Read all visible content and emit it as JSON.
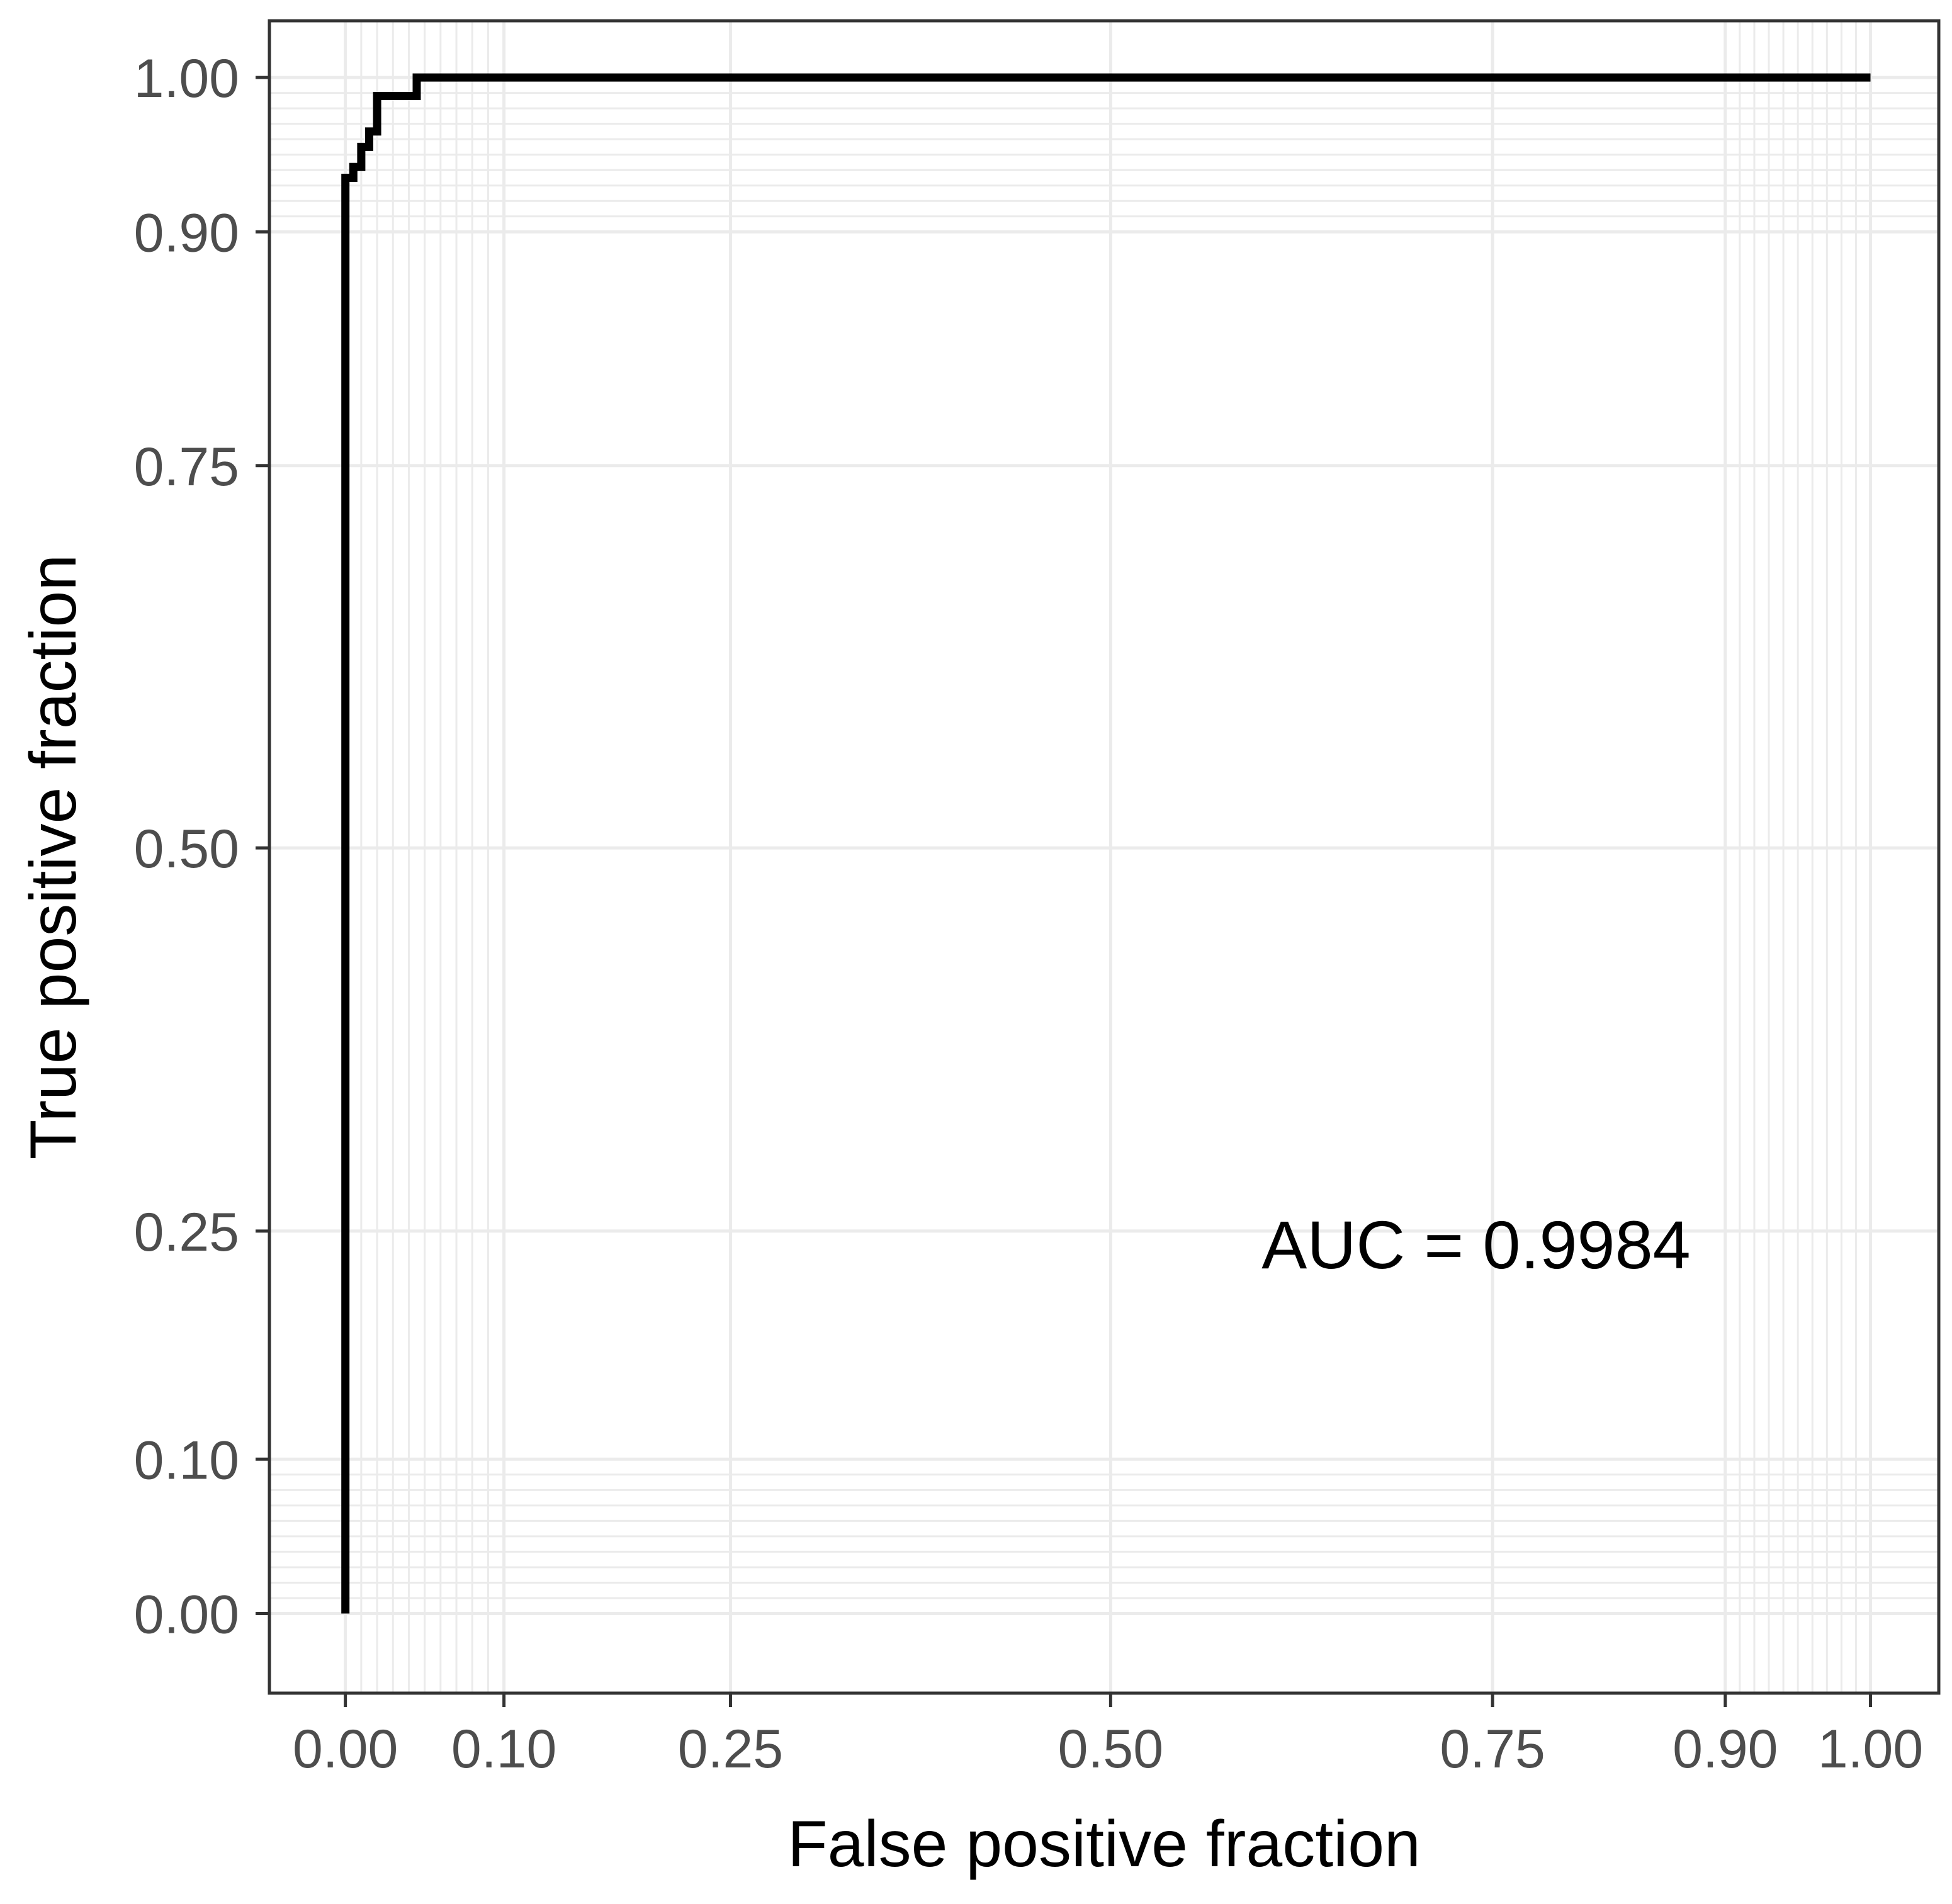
{
  "chart_data": {
    "type": "line",
    "title": "",
    "xlabel": "False positive fraction",
    "ylabel": "True positive fraction",
    "xlim": [
      -0.05,
      1.05
    ],
    "ylim": [
      -0.05,
      1.05
    ],
    "x_ticks": [
      0.0,
      0.1,
      0.25,
      0.5,
      0.75,
      0.9,
      1.0
    ],
    "x_tick_labels": [
      "0.00",
      "0.10",
      "0.25",
      "0.50",
      "0.75",
      "0.90",
      "1.00"
    ],
    "y_ticks": [
      0.0,
      0.1,
      0.25,
      0.5,
      0.75,
      0.9,
      1.0
    ],
    "y_tick_labels": [
      "0.00",
      "0.10",
      "0.25",
      "0.50",
      "0.75",
      "0.90",
      "1.00"
    ],
    "minor_grid": [
      0.01,
      0.02,
      0.03,
      0.04,
      0.05,
      0.06,
      0.07,
      0.08,
      0.09,
      0.91,
      0.92,
      0.93,
      0.94,
      0.95,
      0.96,
      0.97,
      0.98,
      0.99
    ],
    "grid": true,
    "series": [
      {
        "x": [
          0.0,
          0.0,
          0.005,
          0.005,
          0.01,
          0.01,
          0.015,
          0.015,
          0.02,
          0.02,
          0.025,
          0.025,
          0.045,
          0.045,
          1.0
        ],
        "y": [
          0.0,
          0.935,
          0.935,
          0.942,
          0.942,
          0.955,
          0.955,
          0.965,
          0.965,
          0.988,
          0.988,
          0.988,
          0.988,
          1.0,
          1.0
        ]
      }
    ],
    "annotation": "AUC = 0.9984",
    "colors": {
      "line": "#000000",
      "grid": "#ebebeb",
      "panel_border": "#333333",
      "tick_label": "#4d4d4d"
    }
  }
}
